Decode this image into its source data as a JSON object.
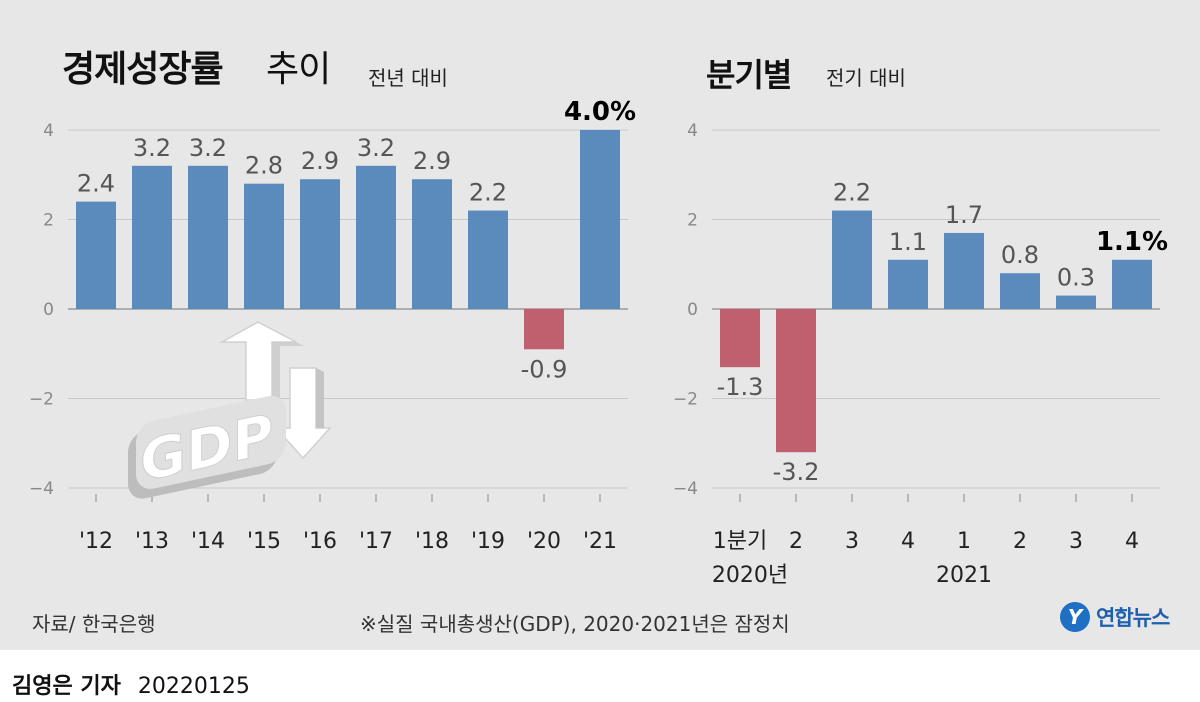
{
  "titles": {
    "annual_main": "경제성장률",
    "annual_sub": "추이",
    "annual_unit": "전년 대비",
    "quarterly_main": "분기별",
    "quarterly_unit": "전기 대비"
  },
  "footer": {
    "source": "자료/ 한국은행",
    "note": "※실질 국내총생산(GDP), 2020·2021년은 잠정치",
    "logo": "연합뉴스",
    "reporter": "김영은 기자",
    "date": "20220125"
  },
  "colors": {
    "positive": "#5b8bbd",
    "negative": "#c0606f",
    "grid": "#c8c8c8",
    "axis": "#555555",
    "label": "#555555",
    "highlight": "#000000"
  },
  "illustration": "gdp-arrow-icon",
  "chart_data": [
    {
      "type": "bar",
      "categories": [
        "'12",
        "'13",
        "'14",
        "'15",
        "'16",
        "'17",
        "'18",
        "'19",
        "'20",
        "'21"
      ],
      "values": [
        2.4,
        3.2,
        3.2,
        2.8,
        2.9,
        3.2,
        2.9,
        2.2,
        -0.9,
        4.0
      ],
      "labels": [
        "2.4",
        "3.2",
        "3.2",
        "2.8",
        "2.9",
        "3.2",
        "2.9",
        "2.2",
        "-0.9",
        "4.0%"
      ],
      "highlight_index": 9,
      "ylim": [
        -4,
        4
      ],
      "yticks": [
        4,
        2,
        0,
        -2,
        -4
      ],
      "ytick_labels": [
        "4",
        "2",
        "0",
        "−2",
        "−4"
      ],
      "grid": true
    },
    {
      "type": "bar",
      "categories": [
        "1분기",
        "2",
        "3",
        "4",
        "1",
        "2",
        "3",
        "4"
      ],
      "group_labels": [
        "2020년",
        "2021"
      ],
      "values": [
        -1.3,
        -3.2,
        2.2,
        1.1,
        1.7,
        0.8,
        0.3,
        1.1
      ],
      "labels": [
        "-1.3",
        "-3.2",
        "2.2",
        "1.1",
        "1.7",
        "0.8",
        "0.3",
        "1.1%"
      ],
      "highlight_index": 7,
      "ylim": [
        -4,
        4
      ],
      "yticks": [
        4,
        2,
        0,
        -2,
        -4
      ],
      "ytick_labels": [
        "4",
        "2",
        "0",
        "−2",
        "−4"
      ],
      "grid": true
    }
  ]
}
